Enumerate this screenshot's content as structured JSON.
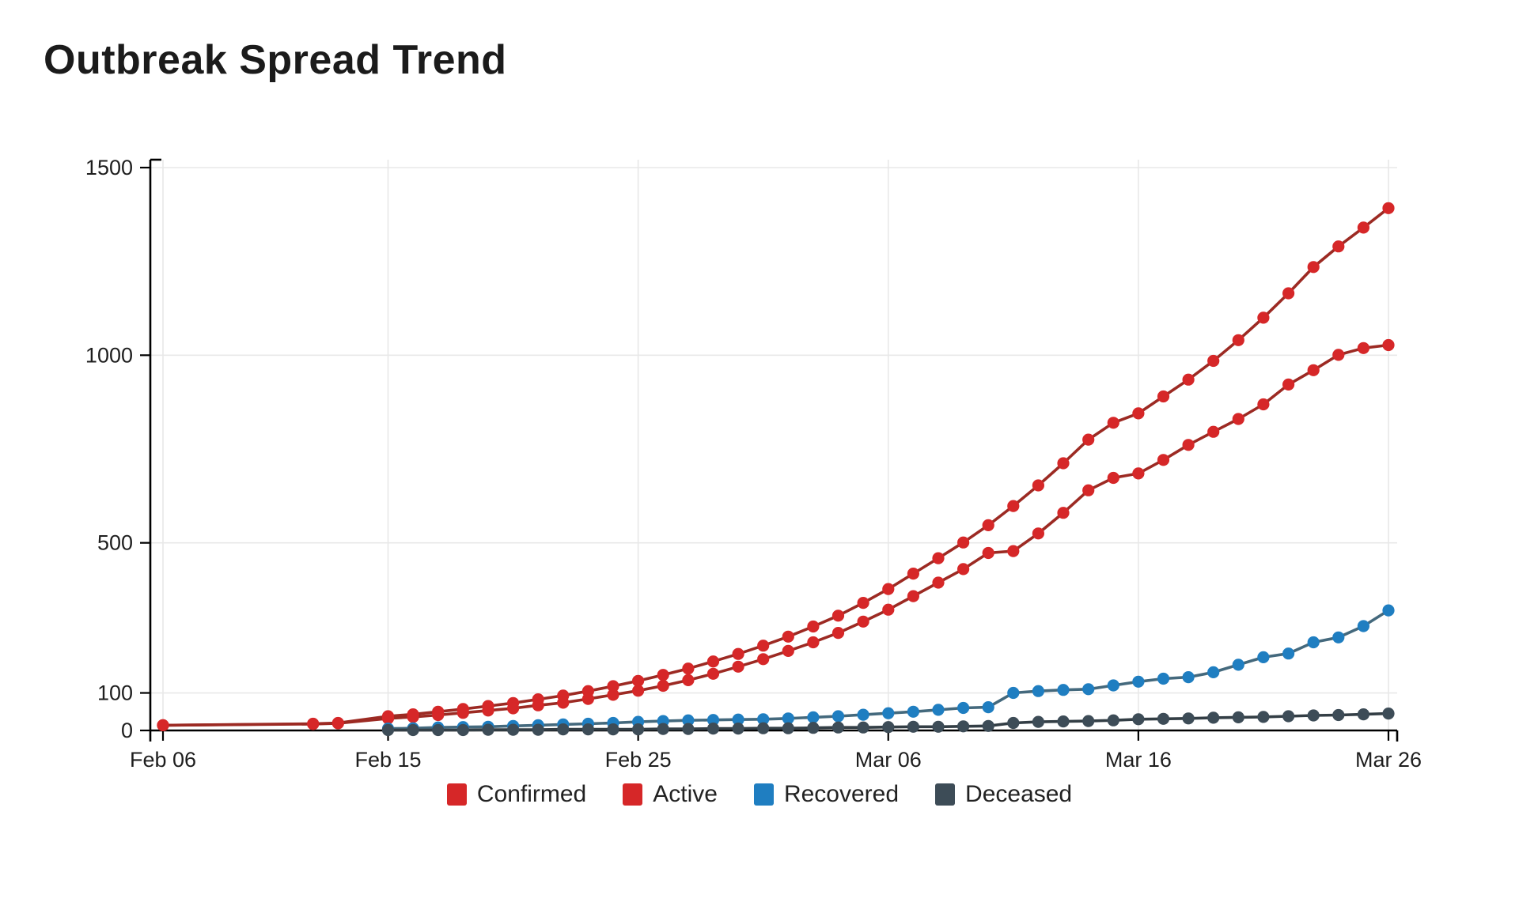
{
  "title": "Outbreak Spread Trend",
  "legend": {
    "items": [
      {
        "label": "Confirmed",
        "color": "#d62728"
      },
      {
        "label": "Active",
        "color": "#d62728"
      },
      {
        "label": "Recovered",
        "color": "#1f7ec1"
      },
      {
        "label": "Deceased",
        "color": "#3d4c57"
      }
    ]
  },
  "colors": {
    "grid": "#e8e8e8",
    "axis": "#000000",
    "tick_text": "#1e1e1e",
    "title_text": "#1b1b1b"
  },
  "chart_data": {
    "type": "line",
    "title": "Outbreak Spread Trend",
    "xlabel": "",
    "ylabel": "",
    "grid": true,
    "legend_position": "bottom-center",
    "x_axis": {
      "tick_labels": [
        "Feb 06",
        "Feb 15",
        "Feb 25",
        "Mar 06",
        "Mar 16",
        "Mar 26"
      ],
      "tick_day_offsets": [
        0,
        9,
        19,
        29,
        39,
        49
      ]
    },
    "y_axis": {
      "tick_values": [
        0,
        100,
        500,
        1000,
        1500
      ],
      "range": [
        0,
        1500
      ]
    },
    "categories": [
      "Feb 06",
      "Feb 12",
      "Feb 13",
      "Feb 15",
      "Feb 16",
      "Feb 17",
      "Feb 18",
      "Feb 19",
      "Feb 20",
      "Feb 21",
      "Feb 22",
      "Feb 23",
      "Feb 24",
      "Feb 25",
      "Feb 26",
      "Feb 27",
      "Feb 28",
      "Feb 29",
      "Mar 01",
      "Mar 02",
      "Mar 03",
      "Mar 04",
      "Mar 05",
      "Mar 06",
      "Mar 07",
      "Mar 08",
      "Mar 09",
      "Mar 10",
      "Mar 11",
      "Mar 12",
      "Mar 13",
      "Mar 14",
      "Mar 15",
      "Mar 16",
      "Mar 17",
      "Mar 18",
      "Mar 19",
      "Mar 20",
      "Mar 21",
      "Mar 22",
      "Mar 23",
      "Mar 24",
      "Mar 25",
      "Mar 26"
    ],
    "day_offsets": [
      0,
      6,
      7,
      9,
      10,
      11,
      12,
      13,
      14,
      15,
      16,
      17,
      18,
      19,
      20,
      21,
      22,
      23,
      24,
      25,
      26,
      27,
      28,
      29,
      30,
      31,
      32,
      33,
      34,
      35,
      36,
      37,
      38,
      39,
      40,
      41,
      42,
      43,
      44,
      45,
      46,
      47,
      48,
      49
    ],
    "series": [
      {
        "name": "Confirmed",
        "marker_color": "#d62728",
        "line_color": "#9c2a23",
        "values": [
          14,
          18,
          20,
          38,
          43,
          50,
          57,
          65,
          73,
          83,
          93,
          105,
          118,
          132,
          148,
          165,
          184,
          204,
          226,
          250,
          277,
          306,
          340,
          377,
          418,
          459,
          501,
          547,
          598,
          653,
          712,
          775,
          820,
          845,
          890,
          935,
          985,
          1040,
          1100,
          1165,
          1235,
          1290,
          1340,
          1392
        ]
      },
      {
        "name": "Active",
        "marker_color": "#d62728",
        "line_color": "#9c2a23",
        "values": [
          14,
          17,
          19,
          32,
          36,
          41,
          47,
          53,
          59,
          67,
          74,
          84,
          95,
          106,
          119,
          134,
          151,
          170,
          190,
          212,
          235,
          260,
          290,
          322,
          358,
          394,
          430,
          473,
          478,
          525,
          580,
          640,
          673,
          685,
          721,
          761,
          796,
          830,
          869,
          922,
          960,
          1001,
          1019,
          1027
        ]
      },
      {
        "name": "Recovered",
        "marker_color": "#1f7ec1",
        "line_color": "#44697d",
        "values": [
          null,
          null,
          null,
          5,
          6,
          8,
          9,
          10,
          12,
          14,
          16,
          18,
          20,
          23,
          25,
          27,
          28,
          29,
          30,
          32,
          35,
          38,
          42,
          46,
          50,
          55,
          60,
          62,
          100,
          105,
          108,
          110,
          120,
          130,
          138,
          142,
          155,
          175,
          195,
          205,
          235,
          248,
          278,
          320
        ]
      },
      {
        "name": "Deceased",
        "marker_color": "#3d4c57",
        "line_color": "#333e45",
        "values": [
          null,
          null,
          null,
          1,
          1,
          1,
          1,
          2,
          2,
          2,
          3,
          3,
          3,
          3,
          4,
          4,
          5,
          5,
          6,
          6,
          7,
          8,
          8,
          9,
          10,
          10,
          11,
          12,
          20,
          23,
          24,
          25,
          27,
          30,
          31,
          32,
          34,
          35,
          36,
          38,
          40,
          41,
          43,
          45
        ]
      }
    ]
  }
}
